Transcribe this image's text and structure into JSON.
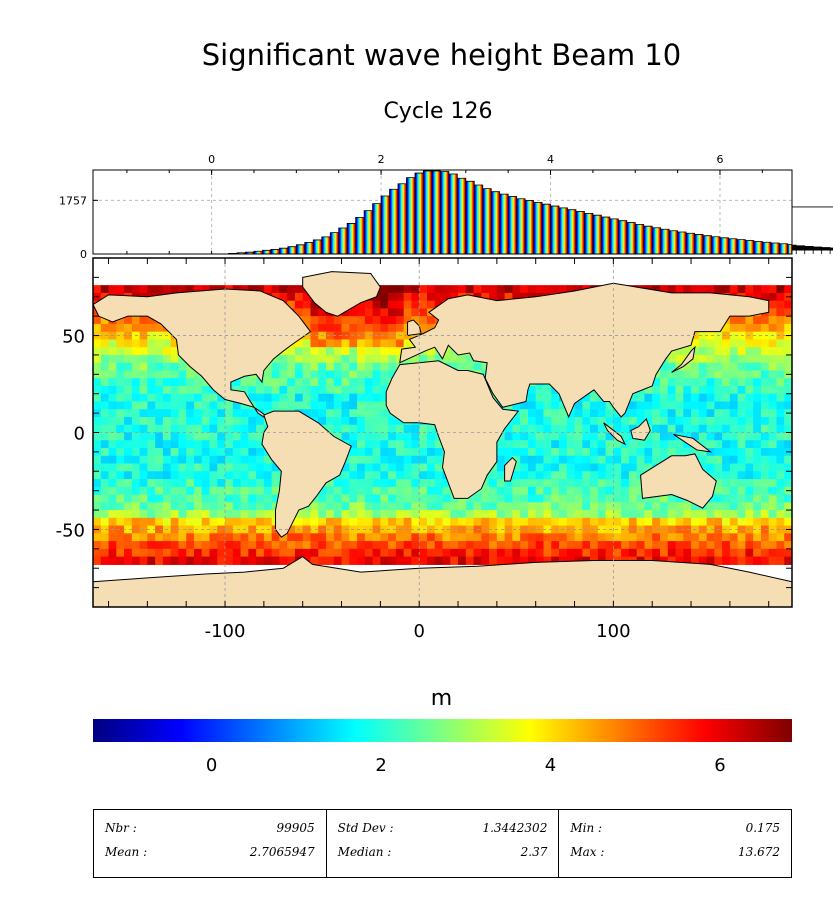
{
  "title": "Significant wave height Beam 10",
  "subtitle": "Cycle 126",
  "chart_data": {
    "type": "map",
    "histogram": {
      "type": "bar",
      "xlim": [
        -1.4,
        6.85
      ],
      "x_ticks": [
        "0",
        "2",
        "4",
        "6"
      ],
      "y_ticks": [
        "0",
        "1757"
      ],
      "ylim": [
        0,
        2750
      ],
      "bin_width": 0.1,
      "bin_start": -0.1,
      "counts": [
        0,
        0,
        0,
        20,
        40,
        60,
        90,
        120,
        150,
        190,
        240,
        300,
        380,
        460,
        560,
        700,
        850,
        1000,
        1200,
        1420,
        1650,
        1900,
        2120,
        2300,
        2500,
        2650,
        2720,
        2720,
        2700,
        2620,
        2480,
        2380,
        2260,
        2140,
        2040,
        1960,
        1880,
        1810,
        1750,
        1690,
        1630,
        1570,
        1510,
        1450,
        1390,
        1330,
        1270,
        1210,
        1150,
        1090,
        1030,
        970,
        910,
        860,
        810,
        760,
        720,
        680,
        640,
        600,
        565,
        530,
        500,
        470,
        440,
        410,
        385,
        360,
        335,
        310,
        290,
        270,
        250,
        230,
        212,
        195,
        180,
        165,
        150,
        138,
        126,
        1540
      ],
      "grid": true
    },
    "map": {
      "x_ticks": [
        "-100",
        "0",
        "100"
      ],
      "y_ticks": [
        "50",
        "0",
        "-50"
      ],
      "xlim": [
        -168,
        192
      ],
      "ylim": [
        -90,
        90
      ],
      "land_color": "#f5deb3",
      "ocean_nodata_color": "#ffffff",
      "grid": true
    },
    "colorbar": {
      "label": "m",
      "colormap": "jet",
      "vmin": -1.4,
      "vmax": 6.85,
      "ticks": [
        "0",
        "2",
        "4",
        "6"
      ]
    }
  },
  "stats": {
    "nbr_label": "Nbr :",
    "nbr_value": "99905",
    "mean_label": "Mean :",
    "mean_value": "2.7065947",
    "std_label": "Std Dev :",
    "std_value": "1.3442302",
    "median_label": "Median :",
    "median_value": "2.37",
    "min_label": "Min :",
    "min_value": "0.175",
    "max_label": "Max :",
    "max_value": "13.672"
  }
}
